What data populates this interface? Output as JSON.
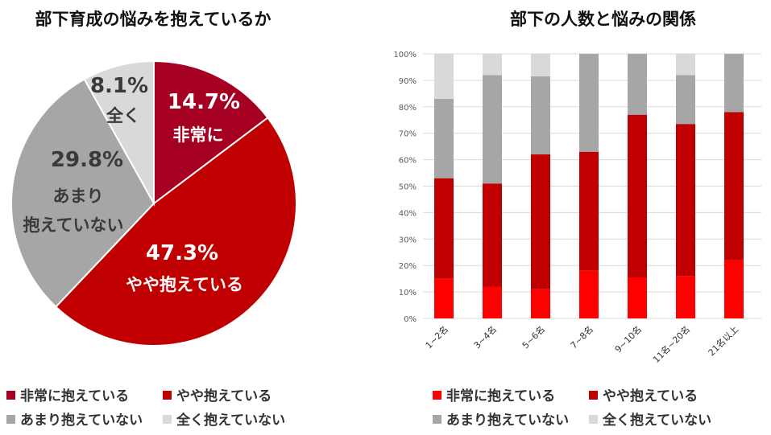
{
  "pie_title": "部下育成の悩みを抱えているか",
  "bar_title": "部下の人数と悩みの関係",
  "colors": {
    "very": "#a50021",
    "somewhat": "#c00000",
    "notmuch": "#a6a6a6",
    "none": "#d9d9d9",
    "bar_very": "#ff0000",
    "bar_somewhat": "#c00000",
    "bar_notmuch": "#a6a6a6",
    "bar_none": "#d9d9d9"
  },
  "chart_data": [
    {
      "type": "pie",
      "title": "部下育成の悩みを抱えているか",
      "slices": [
        {
          "key": "very",
          "pct_label": "14.7%",
          "label": [
            "非常に"
          ],
          "value": 14.7
        },
        {
          "key": "somewhat",
          "pct_label": "47.3%",
          "label": [
            "やや抱えている"
          ],
          "value": 47.3
        },
        {
          "key": "notmuch",
          "pct_label": "29.8%",
          "label": [
            "あまり",
            "抱えていない"
          ],
          "value": 29.8
        },
        {
          "key": "none",
          "pct_label": "8.1%",
          "label": [
            "全く"
          ],
          "value": 8.1
        }
      ],
      "legend": [
        {
          "key": "very",
          "label": "非常に抱えている"
        },
        {
          "key": "somewhat",
          "label": "やや抱えている"
        },
        {
          "key": "notmuch",
          "label": "あまり抱えていない"
        },
        {
          "key": "none",
          "label": "全く抱えていない"
        }
      ]
    },
    {
      "type": "bar",
      "stacked": true,
      "title": "部下の人数と悩みの関係",
      "categories": [
        "1~2名",
        "3~4名",
        "5~6名",
        "7~8名",
        "9~10名",
        "11名~20名",
        "21名以上"
      ],
      "ylim": [
        0,
        100
      ],
      "yticks": [
        "0%",
        "10%",
        "20%",
        "30%",
        "40%",
        "50%",
        "60%",
        "70%",
        "80%",
        "90%",
        "100%"
      ],
      "series": [
        {
          "key": "bar_very",
          "name": "非常に抱えている",
          "values": [
            15,
            12,
            11,
            18,
            15.5,
            16,
            22
          ]
        },
        {
          "key": "bar_somewhat",
          "name": "やや抱えている",
          "values": [
            38,
            39,
            51,
            45,
            61.5,
            57.5,
            56
          ]
        },
        {
          "key": "bar_notmuch",
          "name": "あまり抱えていない",
          "values": [
            30,
            41,
            29.5,
            37,
            23,
            18.5,
            22
          ]
        },
        {
          "key": "bar_none",
          "name": "全く抱えていない",
          "values": [
            17,
            8,
            8.5,
            0,
            0,
            8,
            0
          ]
        }
      ]
    }
  ]
}
